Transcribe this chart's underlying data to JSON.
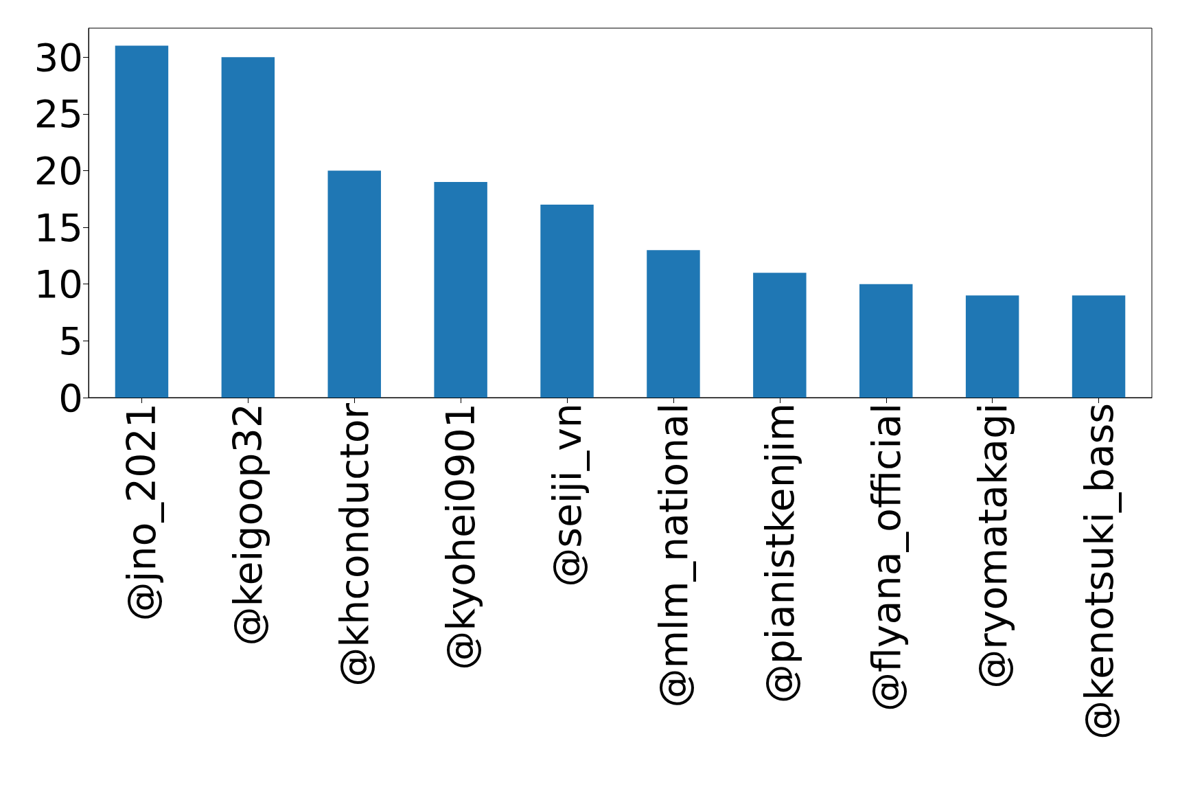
{
  "chart_data": {
    "type": "bar",
    "categories": [
      "@jno_2021",
      "@keigoop32",
      "@khconductor",
      "@kyohei0901",
      "@seiji_vn",
      "@mlm_national",
      "@pianistkenjim",
      "@flyana_official",
      "@ryomatakagi",
      "@kenotsuki_bass"
    ],
    "values": [
      31,
      30,
      20,
      19,
      17,
      13,
      11,
      10,
      9,
      9
    ],
    "color": "#1f77b4",
    "ylim": [
      0,
      32.55
    ],
    "yticks": [
      0,
      5,
      10,
      15,
      20,
      25,
      30
    ],
    "grid": false
  }
}
